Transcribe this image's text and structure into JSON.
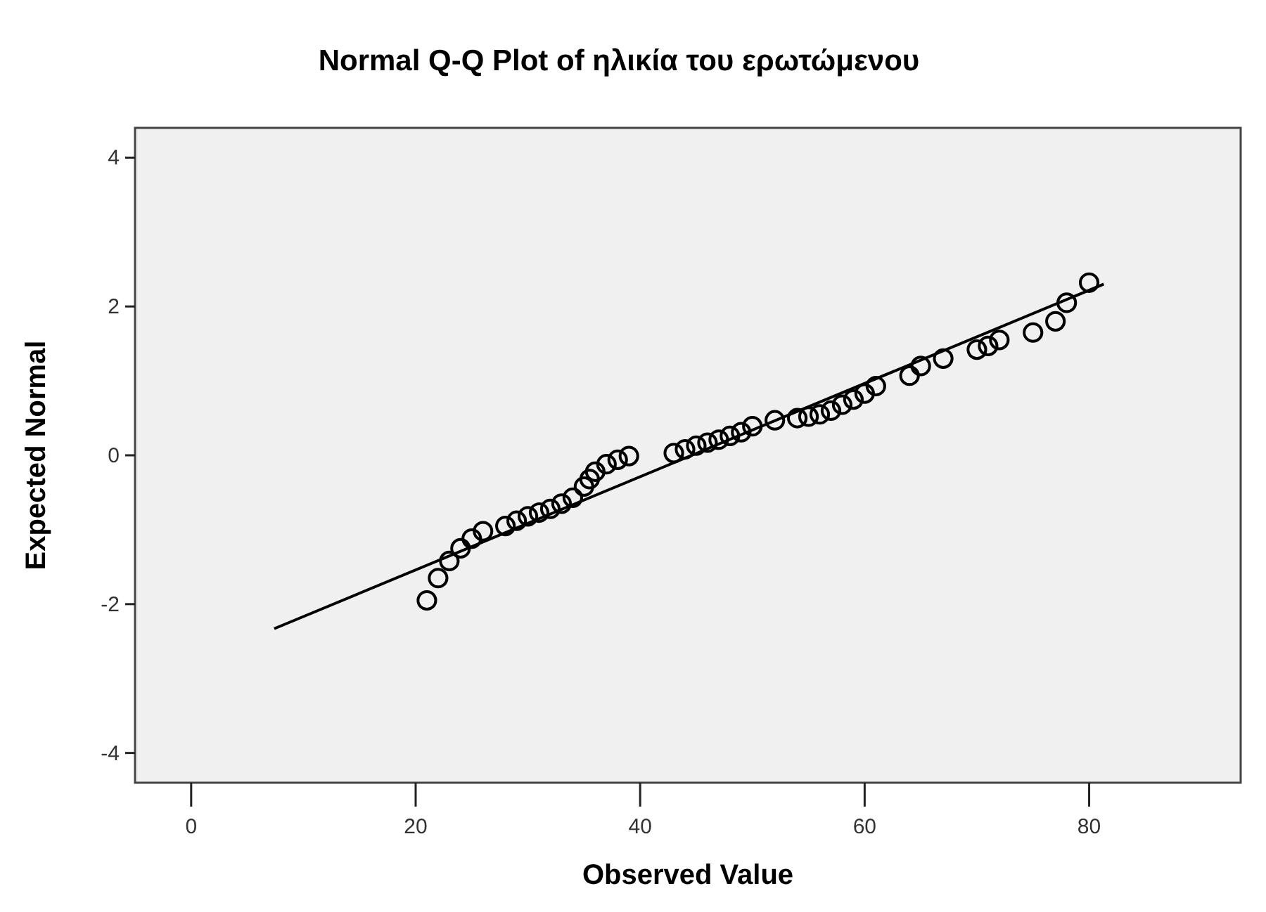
{
  "chart_data": {
    "type": "scatter",
    "title": "Normal Q-Q Plot of ηλικία του ερωτώμενου",
    "xlabel": "Observed Value",
    "ylabel": "Expected Normal",
    "xlim": [
      -5,
      93.5
    ],
    "ylim": [
      -4.4,
      4.4
    ],
    "xticks": [
      0,
      20,
      40,
      60,
      80
    ],
    "yticks": [
      -4,
      -2,
      0,
      2,
      4
    ],
    "grid": false,
    "marker": "circle",
    "series": [
      {
        "color": "#000000",
        "x": [
          21,
          22,
          23,
          24,
          25,
          26,
          28,
          29,
          30,
          31,
          32,
          33,
          34,
          35,
          35.5,
          36,
          37,
          38,
          39,
          43,
          44,
          45,
          46,
          47,
          48,
          49,
          50,
          52,
          54,
          55,
          56,
          57,
          58,
          59,
          60,
          61,
          64,
          65,
          67,
          70,
          71,
          72,
          75,
          77,
          78,
          80
        ],
        "values": [
          -1.95,
          -1.65,
          -1.42,
          -1.25,
          -1.12,
          -1.02,
          -0.95,
          -0.88,
          -0.82,
          -0.77,
          -0.72,
          -0.65,
          -0.57,
          -0.42,
          -0.32,
          -0.22,
          -0.12,
          -0.06,
          -0.01,
          0.03,
          0.08,
          0.13,
          0.17,
          0.21,
          0.26,
          0.31,
          0.39,
          0.47,
          0.5,
          0.52,
          0.55,
          0.6,
          0.68,
          0.75,
          0.83,
          0.93,
          1.07,
          1.2,
          1.3,
          1.42,
          1.47,
          1.55,
          1.65,
          1.8,
          2.05,
          2.32
        ]
      },
      {
        "type": "line",
        "color": "#000000",
        "marker": "none",
        "x": [
          7.4,
          81.3
        ],
        "values": [
          -2.33,
          2.3
        ]
      }
    ]
  }
}
